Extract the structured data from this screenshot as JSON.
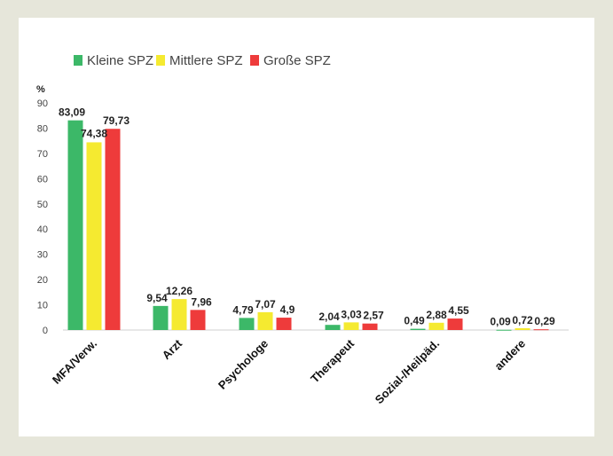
{
  "chart_data": {
    "type": "bar",
    "ylabel": "%",
    "ylim": [
      0,
      90
    ],
    "yticks": [
      0,
      10,
      20,
      30,
      40,
      50,
      60,
      70,
      80,
      90
    ],
    "grid": false,
    "legend_position": "top-left",
    "categories": [
      "MFA/Verw.",
      "Arzt",
      "Psychologe",
      "Therapeut",
      "Sozial-/Heilpäd.",
      "andere"
    ],
    "series": [
      {
        "name": "Kleine SPZ",
        "color": "#3cb868",
        "values": [
          83.09,
          9.54,
          4.79,
          2.04,
          0.49,
          0.09
        ],
        "labels": [
          "83,09",
          "9,54",
          "4,79",
          "2,04",
          "0,49",
          "0,09"
        ]
      },
      {
        "name": "Mittlere SPZ",
        "color": "#f5ea30",
        "values": [
          74.38,
          12.26,
          7.07,
          3.03,
          2.88,
          0.72
        ],
        "labels": [
          "74,38",
          "12,26",
          "7,07",
          "3,03",
          "2,88",
          "0,72"
        ]
      },
      {
        "name": "Große SPZ",
        "color": "#ee3b3b",
        "values": [
          79.73,
          7.96,
          4.9,
          2.57,
          4.55,
          0.29
        ],
        "labels": [
          "79,73",
          "7,96",
          "4,9",
          "2,57",
          "4,55",
          "0,29"
        ]
      }
    ]
  }
}
